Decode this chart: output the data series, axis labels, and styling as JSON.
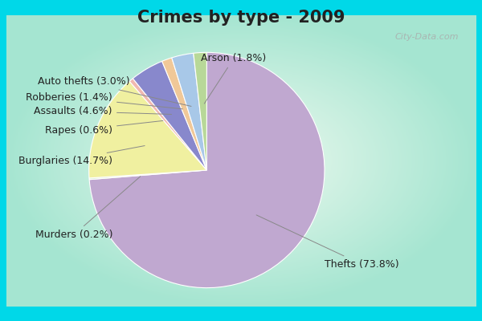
{
  "title": "Crimes by type - 2009",
  "slices": [
    {
      "label": "Thefts",
      "pct": 73.8,
      "color": "#c0a8d0"
    },
    {
      "label": "Murders",
      "pct": 0.2,
      "color": "#d0e8c8"
    },
    {
      "label": "Burglaries",
      "pct": 14.7,
      "color": "#f0f0a0"
    },
    {
      "label": "Rapes",
      "pct": 0.6,
      "color": "#f0b8b0"
    },
    {
      "label": "Assaults",
      "pct": 4.6,
      "color": "#8888cc"
    },
    {
      "label": "Robberies",
      "pct": 1.4,
      "color": "#f0c898"
    },
    {
      "label": "Auto thefts",
      "pct": 3.0,
      "color": "#a8c8e8"
    },
    {
      "label": "Arson",
      "pct": 1.8,
      "color": "#b8d898"
    }
  ],
  "border_color": "#00d8e8",
  "bg_center": "#f0f8f0",
  "bg_edge": "#a0d8c8",
  "title_fontsize": 15,
  "label_fontsize": 9,
  "watermark": "City-Data.com"
}
